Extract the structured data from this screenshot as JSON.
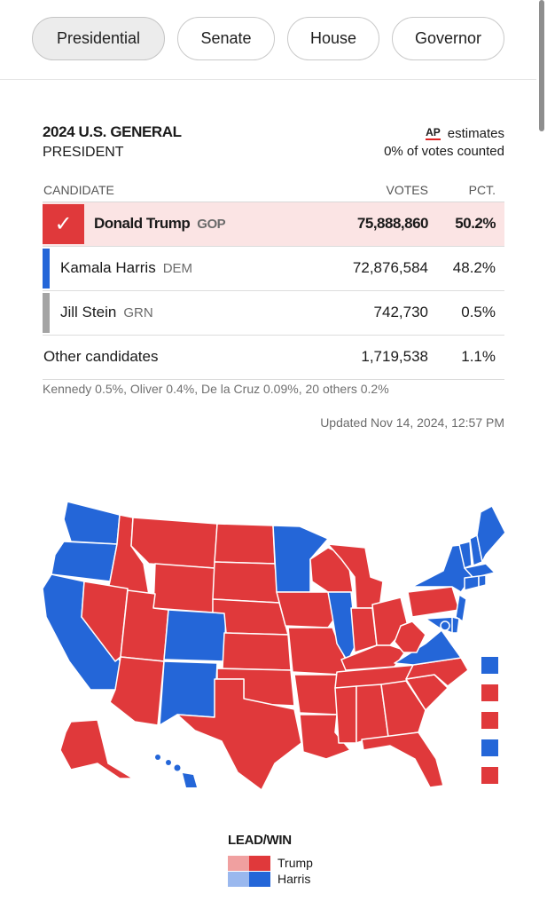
{
  "tabs": [
    {
      "label": "Presidential",
      "active": true
    },
    {
      "label": "Senate",
      "active": false
    },
    {
      "label": "House",
      "active": false
    },
    {
      "label": "Governor",
      "active": false
    }
  ],
  "race": {
    "title": "2024 U.S. GENERAL",
    "subtitle": "PRESIDENT",
    "ap_logo": "AP",
    "estimates": "estimates",
    "counted": "0% of votes counted"
  },
  "table": {
    "headers": {
      "candidate": "CANDIDATE",
      "votes": "VOTES",
      "pct": "PCT."
    },
    "rows": [
      {
        "name": "Donald Trump",
        "party": "GOP",
        "votes": "75,888,860",
        "pct": "50.2%",
        "color": "#e0393b",
        "winner": true
      },
      {
        "name": "Kamala Harris",
        "party": "DEM",
        "votes": "72,876,584",
        "pct": "48.2%",
        "color": "#2466d8",
        "winner": false
      },
      {
        "name": "Jill Stein",
        "party": "GRN",
        "votes": "742,730",
        "pct": "0.5%",
        "color": "#a4a4a4",
        "winner": false
      }
    ],
    "other": {
      "name": "Other candidates",
      "votes": "1,719,538",
      "pct": "1.1%"
    },
    "others_breakdown": "Kennedy 0.5%, Oliver 0.4%, De la Cruz 0.09%, 20 others 0.2%"
  },
  "updated": "Updated Nov 14, 2024, 12:57 PM",
  "colors": {
    "trump_win": "#e0393b",
    "trump_lead": "#f0a0a0",
    "harris_win": "#2466d8",
    "harris_lead": "#9ab8ee",
    "winner_row_bg": "#fbe4e4"
  },
  "map": {
    "small_state_squares": [
      "harris",
      "trump",
      "trump",
      "harris",
      "trump"
    ]
  },
  "legend": {
    "title": "LEAD/WIN",
    "trump": "Trump",
    "harris": "Harris"
  }
}
